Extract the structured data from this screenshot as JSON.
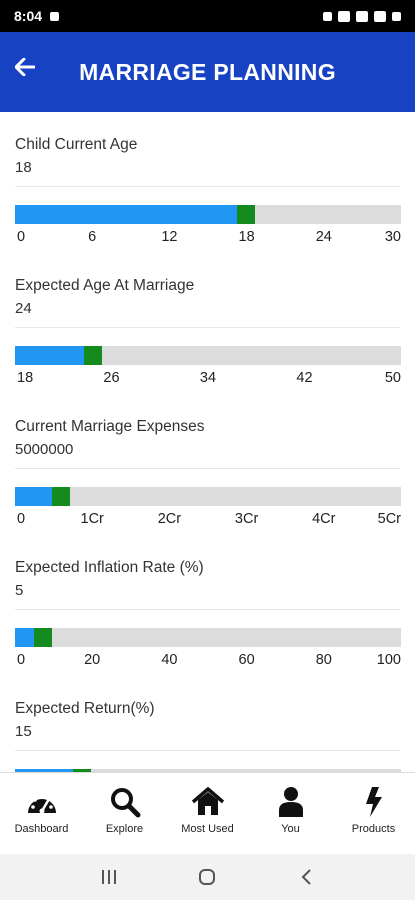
{
  "status_bar": {
    "time": "8:04"
  },
  "app_bar": {
    "title": "MARRIAGE PLANNING"
  },
  "fields": [
    {
      "label": "Child Current Age",
      "value": "18",
      "fill_fraction": 0.575,
      "ticks": [
        "0",
        "6",
        "12",
        "18",
        "24",
        "30"
      ]
    },
    {
      "label": "Expected Age At Marriage",
      "value": "24",
      "fill_fraction": 0.18,
      "ticks": [
        "18",
        "26",
        "34",
        "42",
        "50"
      ]
    },
    {
      "label": "Current Marriage Expenses",
      "value": "5000000",
      "fill_fraction": 0.095,
      "ticks": [
        "0",
        "1Cr",
        "2Cr",
        "3Cr",
        "4Cr",
        "5Cr"
      ]
    },
    {
      "label": "Expected Inflation Rate (%)",
      "value": "5",
      "fill_fraction": 0.05,
      "ticks": [
        "0",
        "20",
        "40",
        "60",
        "80",
        "100"
      ]
    },
    {
      "label": "Expected Return(%)",
      "value": "15",
      "fill_fraction": 0.15,
      "ticks": []
    }
  ],
  "bottom_nav": {
    "items": [
      {
        "label": "Dashboard",
        "icon": "dashboard-icon"
      },
      {
        "label": "Explore",
        "icon": "search-icon"
      },
      {
        "label": "Most Used",
        "icon": "home-icon"
      },
      {
        "label": "You",
        "icon": "person-icon"
      },
      {
        "label": "Products",
        "icon": "bolt-icon"
      }
    ]
  }
}
